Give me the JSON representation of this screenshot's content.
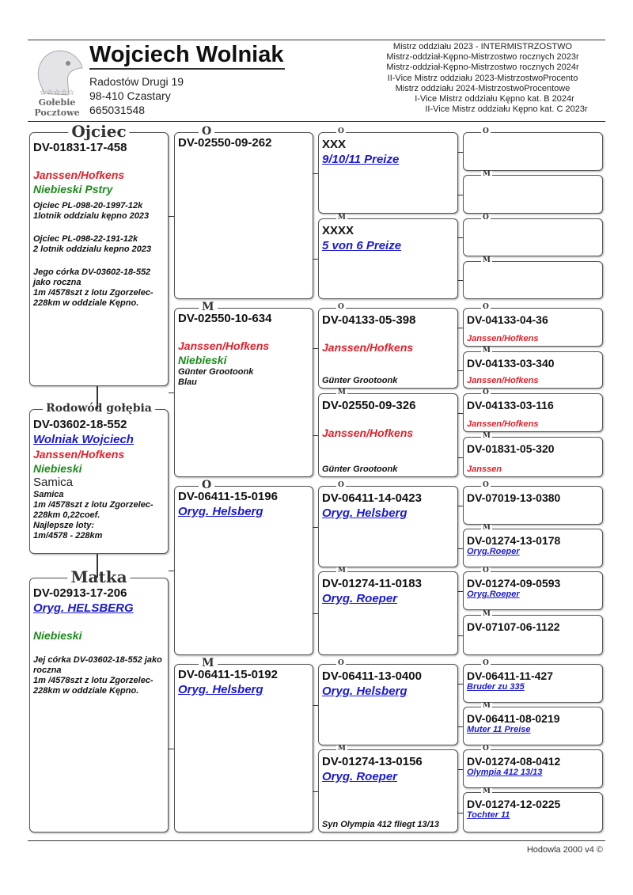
{
  "header": {
    "owner_name": "Wojciech Wolniak",
    "address_line1": "Radostów Drugi 19",
    "address_line2": "98-410 Czastary",
    "phone": "665031548",
    "logo_text": [
      "☆☆☆☆☆",
      "Gołebie",
      "Pocztowe"
    ],
    "titles": [
      "Mistrz oddziału 2023 - INTERMISTRZOSTWO",
      "Mistrz-oddział-Kępno-Mistrzostwo rocznych 2023r",
      "Mistrz-oddział-Kępno-Mistrzostwo rocznych 2024r",
      "II-Vice Mistrz oddziału 2023-MistrzostwoProcento",
      "Mistrz oddziału 2024-MistrzostwoProcentowe",
      "I-Vice Mistrz oddziału Kępno kat. B 2024r",
      "II-Vice Mistrz oddziału Kępno kat. C 2023r"
    ]
  },
  "colors": {
    "red": "#e0202a",
    "green": "#1d8a1d",
    "link": "#1a1ad0"
  },
  "pedigree": {
    "col1": [
      {
        "label": "Ojciec",
        "lines": [
          {
            "text": "DV-01831-17-458",
            "style": "ring"
          },
          {
            "text": "Janssen/Hofkens",
            "style": "red gap"
          },
          {
            "text": "Niebieski Pstry",
            "style": "green"
          },
          {
            "text": "Ojciec PL-098-20-1997-12k\n1lotnik oddzialu kępno 2023",
            "style": "note gap-sm"
          },
          {
            "text": "Ojciec PL-098-22-191-12k\n2 lotnik oddzialu kepno 2023",
            "style": "note gap"
          },
          {
            "text": "Jego córka DV-03602-18-552 jako roczna\n 1m /4578szt z lotu Zgorzelec-228km w oddziale Kępno.",
            "style": "note gap"
          }
        ]
      },
      {
        "label": "Rodowód gołębia",
        "lines": [
          {
            "text": "DV-03602-18-552",
            "style": "ring"
          },
          {
            "text": "Wolniak Wojciech",
            "style": "link"
          },
          {
            "text": "Janssen/Hofkens",
            "style": "red"
          },
          {
            "text": "Niebieski",
            "style": "green"
          },
          {
            "text": "Samica",
            "style": "plain"
          },
          {
            "text": "Samica\n1m /4578szt z lotu Zgorzelec-228km 0,22coef.\nNajlepsze loty:\n1m/4578 - 228km",
            "style": "note"
          }
        ]
      },
      {
        "label": "Matka",
        "lines": [
          {
            "text": "DV-02913-17-206",
            "style": "ring"
          },
          {
            "text": "Oryg. HELSBERG",
            "style": "link"
          },
          {
            "text": "Niebieski",
            "style": "green gap"
          },
          {
            "text": "Jej córka DV-03602-18-552 jako roczna\n 1m /4578szt z lotu Zgorzelec-228km w oddziale Kępno.",
            "style": "note gap"
          }
        ]
      }
    ],
    "col2": [
      {
        "label": "O",
        "lines": [
          {
            "text": "DV-02550-09-262",
            "style": "ring"
          }
        ]
      },
      {
        "label": "M",
        "lines": [
          {
            "text": "DV-02550-10-634",
            "style": "ring"
          },
          {
            "text": "Janssen/Hofkens",
            "style": "red gap"
          },
          {
            "text": "Niebieski",
            "style": "green"
          },
          {
            "text": "Günter Grootoonk\nBlau",
            "style": "note"
          }
        ]
      },
      {
        "label": "O",
        "lines": [
          {
            "text": "DV-06411-15-0196",
            "style": "ring"
          },
          {
            "text": "Oryg. Helsberg",
            "style": "link"
          }
        ]
      },
      {
        "label": "M",
        "lines": [
          {
            "text": "DV-06411-15-0192",
            "style": "ring"
          },
          {
            "text": "Oryg. Helsberg",
            "style": "link"
          }
        ]
      }
    ],
    "col3": [
      {
        "label": "O",
        "lines": [
          {
            "text": "XXX",
            "style": "ring"
          },
          {
            "text": "9/10/11 Preize",
            "style": "link"
          }
        ]
      },
      {
        "label": "M",
        "lines": [
          {
            "text": "XXXX",
            "style": "ring"
          },
          {
            "text": "5 von 6 Preize",
            "style": "link"
          }
        ]
      },
      {
        "label": "O",
        "lines": [
          {
            "text": "DV-04133-05-398",
            "style": "ring"
          },
          {
            "text": "Janssen/Hofkens",
            "style": "red gap"
          },
          {
            "text": "Günter Grootoonk",
            "style": "note bottom"
          }
        ]
      },
      {
        "label": "M",
        "lines": [
          {
            "text": "DV-02550-09-326",
            "style": "ring"
          },
          {
            "text": "Janssen/Hofkens",
            "style": "red gap"
          },
          {
            "text": "Günter Grootoonk",
            "style": "note bottom"
          }
        ]
      },
      {
        "label": "O",
        "lines": [
          {
            "text": "DV-06411-14-0423",
            "style": "ring"
          },
          {
            "text": "Oryg. Helsberg",
            "style": "link"
          }
        ]
      },
      {
        "label": "M",
        "lines": [
          {
            "text": "DV-01274-11-0183",
            "style": "ring"
          },
          {
            "text": "Oryg. Roeper",
            "style": "link"
          }
        ]
      },
      {
        "label": "O",
        "lines": [
          {
            "text": "DV-06411-13-0400",
            "style": "ring"
          },
          {
            "text": "Oryg. Helsberg",
            "style": "link"
          }
        ]
      },
      {
        "label": "M",
        "lines": [
          {
            "text": "DV-01274-13-0156",
            "style": "ring"
          },
          {
            "text": "Oryg. Roeper",
            "style": "link"
          },
          {
            "text": "Syn Olympia 412 fliegt 13/13",
            "style": "note bottom"
          }
        ]
      }
    ],
    "col4": [
      {
        "label": "O",
        "lines": []
      },
      {
        "label": "M",
        "lines": []
      },
      {
        "label": "O",
        "lines": []
      },
      {
        "label": "M",
        "lines": []
      },
      {
        "label": "O",
        "lines": [
          {
            "text": "DV-04133-04-36",
            "style": "ring-sm"
          },
          {
            "text": "Janssen/Hofkens",
            "style": "red-sm bottom"
          }
        ]
      },
      {
        "label": "M",
        "lines": [
          {
            "text": "DV-04133-03-340",
            "style": "ring-sm"
          },
          {
            "text": "Janssen/Hofkens",
            "style": "red-sm bottom"
          }
        ]
      },
      {
        "label": "O",
        "lines": [
          {
            "text": "DV-04133-03-116",
            "style": "ring-sm"
          },
          {
            "text": "Janssen/Hofkens",
            "style": "red-sm bottom"
          }
        ]
      },
      {
        "label": "M",
        "lines": [
          {
            "text": "DV-01831-05-320",
            "style": "ring-sm"
          },
          {
            "text": "Janssen",
            "style": "red-sm bottom"
          }
        ]
      },
      {
        "label": "O",
        "lines": [
          {
            "text": "DV-07019-13-0380",
            "style": "ring-sm"
          }
        ]
      },
      {
        "label": "M",
        "lines": [
          {
            "text": "DV-01274-13-0178",
            "style": "ring-sm"
          },
          {
            "text": "Oryg.Roeper",
            "style": "link-sm"
          }
        ]
      },
      {
        "label": "O",
        "lines": [
          {
            "text": "DV-01274-09-0593",
            "style": "ring-sm"
          },
          {
            "text": "Oryg.Roeper",
            "style": "link-sm"
          }
        ]
      },
      {
        "label": "M",
        "lines": [
          {
            "text": "DV-07107-06-1122",
            "style": "ring-sm"
          }
        ]
      },
      {
        "label": "O",
        "lines": [
          {
            "text": "DV-06411-11-427",
            "style": "ring-sm"
          },
          {
            "text": "Bruder zu 335",
            "style": "link-sm"
          }
        ]
      },
      {
        "label": "M",
        "lines": [
          {
            "text": "DV-06411-08-0219",
            "style": "ring-sm"
          },
          {
            "text": "Muter 11 Preise",
            "style": "link-sm"
          }
        ]
      },
      {
        "label": "O",
        "lines": [
          {
            "text": "DV-01274-08-0412",
            "style": "ring-sm"
          },
          {
            "text": "Olympia 412 13/13",
            "style": "link-sm"
          }
        ]
      },
      {
        "label": "M",
        "lines": [
          {
            "text": "DV-01274-12-0225",
            "style": "ring-sm"
          },
          {
            "text": "Tochter 11",
            "style": "link-sm"
          }
        ]
      }
    ]
  },
  "footer": {
    "text": "Hodowla 2000 v4 ©"
  }
}
